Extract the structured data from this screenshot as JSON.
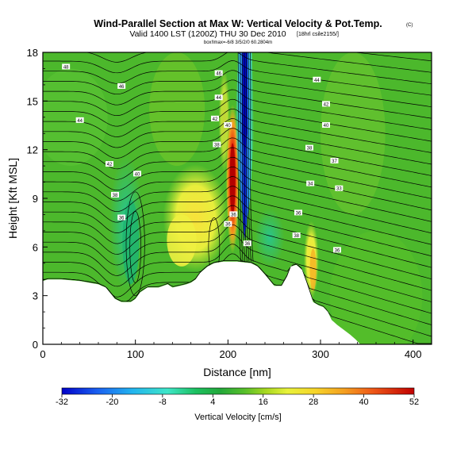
{
  "header": {
    "title": "Wind-Parallel Section at Max W: Vertical Velocity & Pot.Temp.",
    "title_mark": "(C)",
    "subtitle": "Valid 1400 LST (1200Z) THU 30 Dec 2010",
    "subtitle_note": "[18hrl csile2155/]",
    "note": "box!lmax=-6/8 3/5/2/0 60.2804m"
  },
  "chart_data": {
    "type": "heatmap",
    "title": "Wind-Parallel Section at Max W: Vertical Velocity & Pot.Temp.",
    "xlabel": "Distance [nm]",
    "ylabel": "Height [Kft MSL]",
    "xlim": [
      0,
      420
    ],
    "ylim": [
      0,
      18
    ],
    "xticks": [
      "0",
      "100",
      "200",
      "300",
      "400"
    ],
    "yticks": [
      "0",
      "3",
      "6",
      "9",
      "12",
      "15",
      "18"
    ],
    "colorbar": {
      "label": "Vertical Velocity [cm/s]",
      "ticks": [
        "-32",
        "-20",
        "-8",
        "4",
        "16",
        "28",
        "40",
        "52"
      ],
      "min": -32,
      "max": 52,
      "placement": "bottom"
    },
    "terrain_kft": [
      [
        0,
        3.9
      ],
      [
        5,
        4.0
      ],
      [
        20,
        4.0
      ],
      [
        40,
        3.9
      ],
      [
        60,
        3.7
      ],
      [
        68,
        3.5
      ],
      [
        78,
        2.8
      ],
      [
        85,
        2.6
      ],
      [
        95,
        2.6
      ],
      [
        100,
        2.8
      ],
      [
        105,
        3.2
      ],
      [
        113,
        3.5
      ],
      [
        125,
        3.5
      ],
      [
        135,
        3.7
      ],
      [
        140,
        3.5
      ],
      [
        148,
        3.6
      ],
      [
        155,
        3.7
      ],
      [
        160,
        3.8
      ],
      [
        165,
        4.0
      ],
      [
        170,
        4.4
      ],
      [
        178,
        4.8
      ],
      [
        185,
        5.0
      ],
      [
        195,
        5.1
      ],
      [
        210,
        5.1
      ],
      [
        225,
        5.0
      ],
      [
        232,
        4.8
      ],
      [
        240,
        4.3
      ],
      [
        250,
        3.6
      ],
      [
        258,
        3.6
      ],
      [
        264,
        4.2
      ],
      [
        268,
        4.8
      ],
      [
        274,
        4.9
      ],
      [
        280,
        4.6
      ],
      [
        285,
        3.8
      ],
      [
        292,
        2.6
      ],
      [
        298,
        2.4
      ],
      [
        303,
        2.3
      ],
      [
        308,
        2.0
      ],
      [
        312,
        1.5
      ],
      [
        318,
        1.2
      ],
      [
        325,
        0.9
      ],
      [
        332,
        0.6
      ],
      [
        338,
        0.3
      ],
      [
        343,
        0.0
      ],
      [
        420,
        0.0
      ]
    ],
    "w_updraft_peak_cm_s": 52,
    "w_downdraft_min_cm_s": -32,
    "potential_temperature_labels": [
      {
        "value": "48",
        "x": 25,
        "y": 17.1
      },
      {
        "value": "46",
        "x": 85,
        "y": 15.9
      },
      {
        "value": "44",
        "x": 40,
        "y": 13.8
      },
      {
        "value": "42",
        "x": 72,
        "y": 11.1
      },
      {
        "value": "40",
        "x": 102,
        "y": 10.5
      },
      {
        "value": "38",
        "x": 78,
        "y": 9.2
      },
      {
        "value": "36",
        "x": 85,
        "y": 7.8
      },
      {
        "value": "46",
        "x": 190,
        "y": 16.7
      },
      {
        "value": "44",
        "x": 190,
        "y": 15.2
      },
      {
        "value": "42",
        "x": 186,
        "y": 13.9
      },
      {
        "value": "40",
        "x": 200,
        "y": 13.5
      },
      {
        "value": "38",
        "x": 188,
        "y": 12.3
      },
      {
        "value": "44",
        "x": 296,
        "y": 16.3
      },
      {
        "value": "42",
        "x": 306,
        "y": 14.8
      },
      {
        "value": "40",
        "x": 306,
        "y": 13.5
      },
      {
        "value": "38",
        "x": 288,
        "y": 12.1
      },
      {
        "value": "37",
        "x": 315,
        "y": 11.3
      },
      {
        "value": "34",
        "x": 289,
        "y": 9.9
      },
      {
        "value": "33",
        "x": 320,
        "y": 9.6
      },
      {
        "value": "36",
        "x": 206,
        "y": 8.0
      },
      {
        "value": "36",
        "x": 200,
        "y": 7.4
      },
      {
        "value": "36",
        "x": 221,
        "y": 6.2
      },
      {
        "value": "36",
        "x": 276,
        "y": 8.1
      },
      {
        "value": "38",
        "x": 274,
        "y": 6.7
      },
      {
        "value": "36",
        "x": 318,
        "y": 5.8
      }
    ]
  }
}
